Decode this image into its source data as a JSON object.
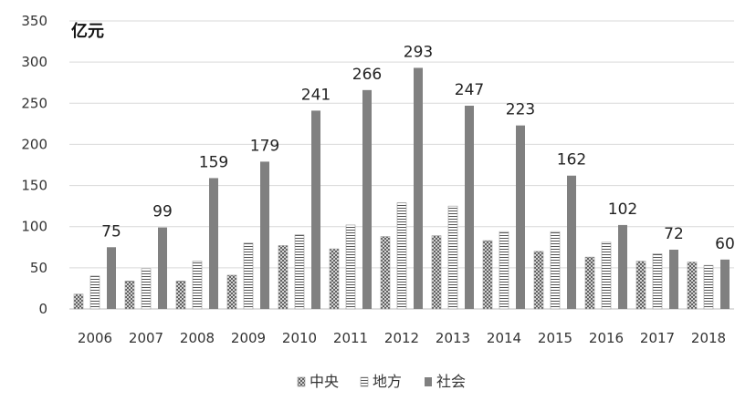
{
  "chart_data": {
    "type": "bar",
    "unit_label": "亿元",
    "categories": [
      "2006",
      "2007",
      "2008",
      "2009",
      "2010",
      "2011",
      "2012",
      "2013",
      "2014",
      "2015",
      "2016",
      "2017",
      "2018"
    ],
    "series": [
      {
        "name": "中央",
        "pattern": "crosshatch",
        "values": [
          18,
          34,
          34,
          41,
          77,
          73,
          88,
          89,
          83,
          70,
          63,
          58,
          57
        ]
      },
      {
        "name": "地方",
        "pattern": "horizontal-lines",
        "values": [
          40,
          49,
          58,
          80,
          90,
          102,
          129,
          125,
          94,
          94,
          81,
          67,
          53
        ]
      },
      {
        "name": "社会",
        "pattern": "solid",
        "color": "#808080",
        "values": [
          75,
          99,
          159,
          179,
          241,
          266,
          293,
          247,
          223,
          162,
          102,
          72,
          60
        ],
        "show_labels": true
      }
    ],
    "ylim": [
      0,
      350
    ],
    "yticks": [
      0,
      50,
      100,
      150,
      200,
      250,
      300,
      350
    ],
    "grid": true,
    "legend_position": "bottom-center"
  }
}
